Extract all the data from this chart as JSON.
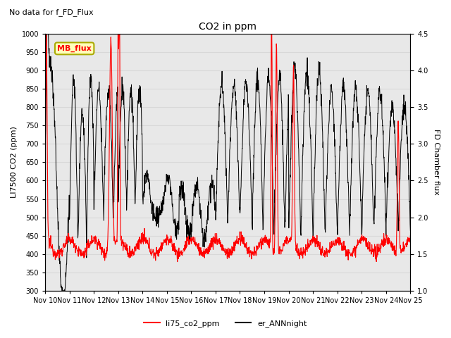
{
  "title": "CO2 in ppm",
  "subtitle": "No data for f_FD_Flux",
  "ylabel_left": "LI7500 CO2 (ppm)",
  "ylabel_right": "FD Chamber flux",
  "ylim_left": [
    300,
    1000
  ],
  "ylim_right": [
    1.0,
    4.5
  ],
  "yticks_left": [
    300,
    350,
    400,
    450,
    500,
    550,
    600,
    650,
    700,
    750,
    800,
    850,
    900,
    950,
    1000
  ],
  "yticks_right": [
    1.0,
    1.5,
    2.0,
    2.5,
    3.0,
    3.5,
    4.0,
    4.5
  ],
  "xtick_labels": [
    "Nov 10",
    "Nov 11",
    "Nov 12",
    "Nov 13",
    "Nov 14",
    "Nov 15",
    "Nov 16",
    "Nov 17",
    "Nov 18",
    "Nov 19",
    "Nov 20",
    "Nov 21",
    "Nov 22",
    "Nov 23",
    "Nov 24",
    "Nov 25"
  ],
  "legend_label_red": "li75_co2_ppm",
  "legend_label_black": "er_ANNnight",
  "legend_box_label": "MB_flux",
  "line_color_red": "#ff0000",
  "line_color_black": "#000000",
  "grid_color": "#d8d8d8",
  "plot_bg_color": "#e8e8e8",
  "fig_bg_color": "#ffffff",
  "n_days": 15,
  "n_per_day": 96
}
